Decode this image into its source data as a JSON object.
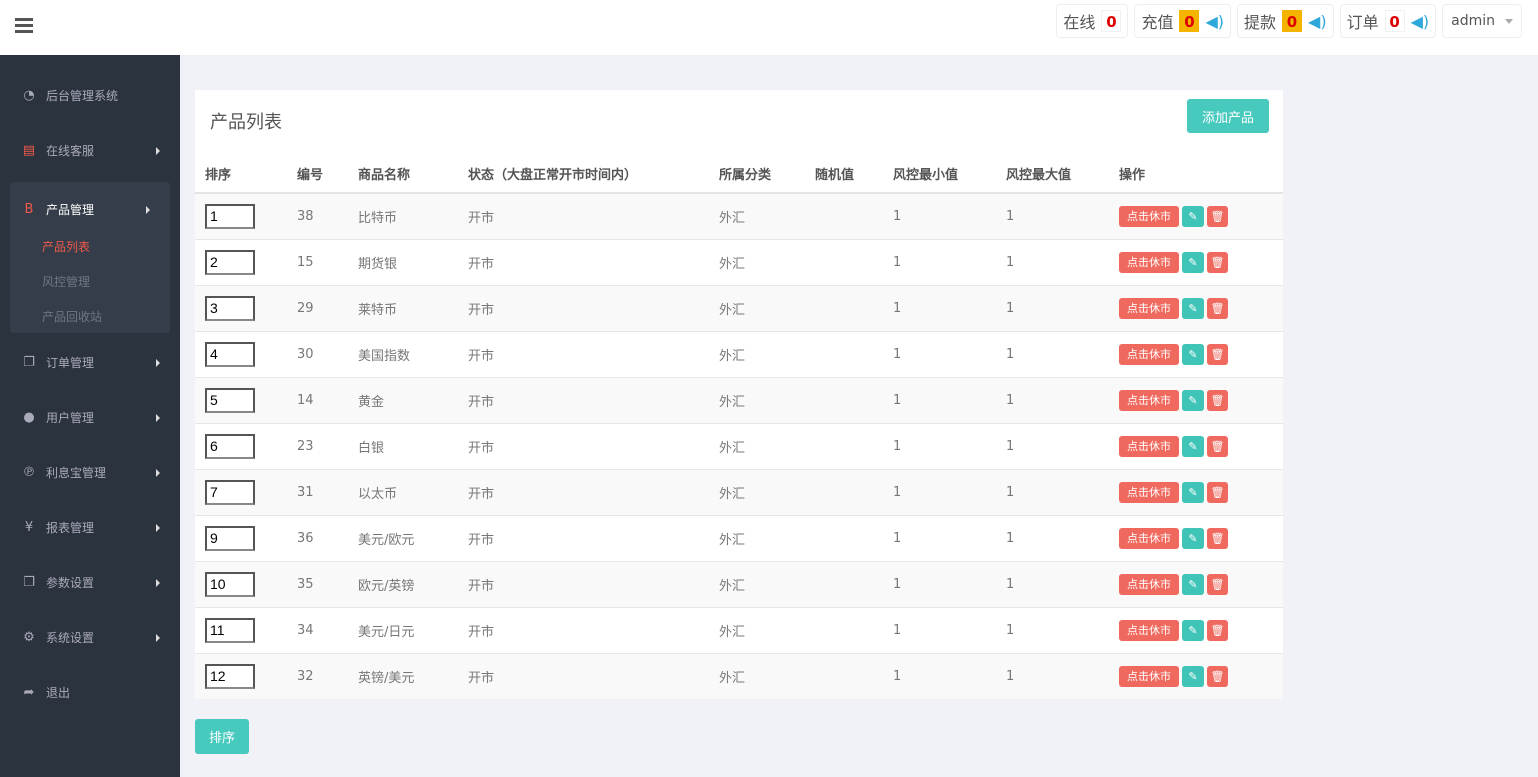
{
  "header": {
    "stats": [
      {
        "label": "在线",
        "value": "0",
        "warn": false,
        "sound": false
      },
      {
        "label": "充值",
        "value": "0",
        "warn": true,
        "sound": true
      },
      {
        "label": "提款",
        "value": "0",
        "warn": true,
        "sound": true
      },
      {
        "label": "订单",
        "value": "0",
        "warn": false,
        "sound": true
      }
    ],
    "user": "admin"
  },
  "sidebar": {
    "items": [
      {
        "label": "后台管理系统",
        "icon": "dashboard-icon",
        "glyph": "◔"
      },
      {
        "label": "在线客服",
        "icon": "book-icon",
        "glyph": "▤"
      },
      {
        "label": "产品管理",
        "icon": "bitcoin-icon",
        "glyph": "B"
      },
      {
        "label": "订单管理",
        "icon": "copy-icon",
        "glyph": "❐"
      },
      {
        "label": "用户管理",
        "icon": "user-icon",
        "glyph": "●"
      },
      {
        "label": "利息宝管理",
        "icon": "pinterest-icon",
        "glyph": "℗"
      },
      {
        "label": "报表管理",
        "icon": "yen-icon",
        "glyph": "¥"
      },
      {
        "label": "参数设置",
        "icon": "copy-icon",
        "glyph": "❐"
      },
      {
        "label": "系统设置",
        "icon": "cogs-icon",
        "glyph": "⚙"
      },
      {
        "label": "退出",
        "icon": "sign-out-icon",
        "glyph": "➦"
      }
    ],
    "sub_items": [
      {
        "label": "产品列表",
        "active": true
      },
      {
        "label": "风控管理",
        "active": false
      },
      {
        "label": "产品回收站",
        "active": false
      }
    ]
  },
  "panel": {
    "title": "产品列表",
    "add_label": "添加产品"
  },
  "table": {
    "columns": [
      "排序",
      "编号",
      "商品名称",
      "状态（大盘正常开市时间内）",
      "所属分类",
      "随机值",
      "风控最小值",
      "风控最大值",
      "操作"
    ],
    "close_label": "点击休市",
    "rows": [
      [
        "1",
        "38",
        "比特币",
        "开市",
        "外汇",
        "",
        "1",
        "1"
      ],
      [
        "2",
        "15",
        "期货银",
        "开市",
        "外汇",
        "",
        "1",
        "1"
      ],
      [
        "3",
        "29",
        "莱特币",
        "开市",
        "外汇",
        "",
        "1",
        "1"
      ],
      [
        "4",
        "30",
        "美国指数",
        "开市",
        "外汇",
        "",
        "1",
        "1"
      ],
      [
        "5",
        "14",
        "黄金",
        "开市",
        "外汇",
        "",
        "1",
        "1"
      ],
      [
        "6",
        "23",
        "白银",
        "开市",
        "外汇",
        "",
        "1",
        "1"
      ],
      [
        "7",
        "31",
        "以太币",
        "开市",
        "外汇",
        "",
        "1",
        "1"
      ],
      [
        "9",
        "36",
        "美元/欧元",
        "开市",
        "外汇",
        "",
        "1",
        "1"
      ],
      [
        "10",
        "35",
        "欧元/英镑",
        "开市",
        "外汇",
        "",
        "1",
        "1"
      ],
      [
        "11",
        "34",
        "美元/日元",
        "开市",
        "外汇",
        "",
        "1",
        "1"
      ],
      [
        "12",
        "32",
        "英镑/美元",
        "开市",
        "外汇",
        "",
        "1",
        "1"
      ]
    ]
  },
  "sort_label": "排序",
  "colors": {
    "accent": "#47c9be",
    "danger": "#f0695e",
    "sidebar": "#2b333e",
    "active": "#f1594a"
  }
}
